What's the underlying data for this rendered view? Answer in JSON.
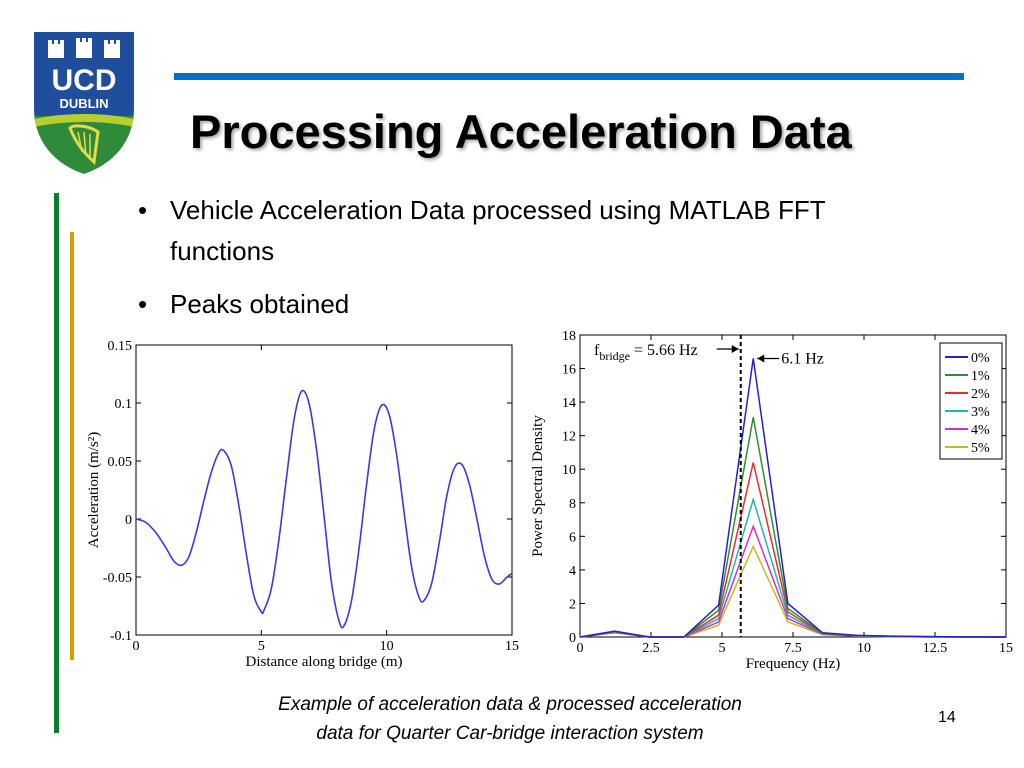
{
  "slide": {
    "title": "Processing Acceleration Data",
    "bullets": [
      {
        "text": "Vehicle Acceleration Data processed using MATLAB FFT functions"
      },
      {
        "text": "Peaks obtained"
      }
    ],
    "caption_line1": "Example of acceleration data & processed acceleration",
    "caption_line2": "data for Quarter Car-bridge interaction system",
    "page_number": "14"
  },
  "logo": {
    "text_top": "UCD",
    "text_bottom": "DUBLIN",
    "colors": {
      "shield_blue": "#1f4e9c",
      "shield_green": "#2e8b3a",
      "shield_yellow": "#b8cf2b"
    }
  },
  "colors": {
    "accent_bar": "#0072c6",
    "side_bar_green": "#0a7f2c",
    "side_bar_yellow": "#d4a100"
  },
  "chart_data": [
    {
      "type": "line",
      "title": "",
      "xlabel": "Distance along bridge (m)",
      "ylabel": "Acceleration (m/s²)",
      "xlim": [
        0,
        15
      ],
      "ylim": [
        -0.1,
        0.15
      ],
      "xticks": [
        "0",
        "5",
        "10",
        "15"
      ],
      "xtick_values": [
        0,
        5,
        10,
        15
      ],
      "yticks": [
        "-0.1",
        "-0.05",
        "0",
        "0.05",
        "0.1",
        "0.15"
      ],
      "ytick_values": [
        -0.1,
        -0.05,
        0,
        0.05,
        0.1,
        0.15
      ],
      "grid": false,
      "series": [
        {
          "color": "#3a3ae0",
          "x": [
            0,
            0.4,
            0.8,
            1.2,
            1.5,
            1.8,
            2.1,
            2.4,
            2.7,
            3.0,
            3.3,
            3.5,
            3.8,
            4.1,
            4.4,
            4.7,
            5.0,
            5.1,
            5.4,
            5.7,
            6.0,
            6.3,
            6.6,
            6.9,
            7.2,
            7.5,
            7.8,
            8.1,
            8.3,
            8.6,
            8.9,
            9.2,
            9.5,
            9.8,
            10.1,
            10.4,
            10.7,
            11.0,
            11.3,
            11.5,
            11.8,
            12.1,
            12.4,
            12.7,
            13.0,
            13.3,
            13.6,
            13.9,
            14.2,
            14.5,
            14.8,
            15.0
          ],
          "y": [
            0.0,
            -0.003,
            -0.012,
            -0.025,
            -0.036,
            -0.04,
            -0.033,
            -0.012,
            0.015,
            0.04,
            0.057,
            0.059,
            0.046,
            0.012,
            -0.03,
            -0.066,
            -0.08,
            -0.079,
            -0.06,
            -0.018,
            0.035,
            0.085,
            0.11,
            0.1,
            0.06,
            0.003,
            -0.055,
            -0.088,
            -0.092,
            -0.07,
            -0.025,
            0.03,
            0.077,
            0.098,
            0.09,
            0.055,
            0.005,
            -0.042,
            -0.068,
            -0.07,
            -0.055,
            -0.02,
            0.02,
            0.044,
            0.047,
            0.03,
            0.0,
            -0.032,
            -0.052,
            -0.056,
            -0.05,
            -0.047
          ]
        }
      ]
    },
    {
      "type": "line",
      "title": "",
      "xlabel": "Frequency (Hz)",
      "ylabel": "Power Spectral Density",
      "xlim": [
        0,
        15
      ],
      "ylim": [
        0,
        18
      ],
      "xticks": [
        "0",
        "2.5",
        "5",
        "7.5",
        "10",
        "12.5",
        "15"
      ],
      "xtick_values": [
        0,
        2.5,
        5,
        7.5,
        10,
        12.5,
        15
      ],
      "yticks": [
        "0",
        "2",
        "4",
        "6",
        "8",
        "10",
        "12",
        "14",
        "16",
        "18"
      ],
      "ytick_values": [
        0,
        2,
        4,
        6,
        8,
        10,
        12,
        14,
        16,
        18
      ],
      "grid": false,
      "legend_placement": "top-right",
      "x": [
        0,
        1.22,
        2.44,
        3.66,
        4.88,
        6.1,
        7.32,
        8.54,
        9.76,
        10.98,
        12.2,
        13.42,
        15.0
      ],
      "series": [
        {
          "name": "0%",
          "color": "#2222cc",
          "values": [
            0.0,
            0.35,
            0.0,
            0.0,
            1.9,
            16.6,
            2.0,
            0.25,
            0.1,
            0.05,
            0.02,
            0.01,
            0.0
          ]
        },
        {
          "name": "1%",
          "color": "#2f8f2f",
          "values": [
            0.0,
            0.33,
            0.0,
            0.0,
            1.6,
            13.1,
            1.7,
            0.22,
            0.09,
            0.04,
            0.02,
            0.01,
            0.0
          ]
        },
        {
          "name": "2%",
          "color": "#e03030",
          "values": [
            0.0,
            0.31,
            0.0,
            0.0,
            1.3,
            10.4,
            1.5,
            0.2,
            0.08,
            0.04,
            0.02,
            0.01,
            0.0
          ]
        },
        {
          "name": "3%",
          "color": "#22b5b5",
          "values": [
            0.0,
            0.29,
            0.0,
            0.0,
            1.1,
            8.2,
            1.3,
            0.18,
            0.07,
            0.03,
            0.01,
            0.0,
            0.0
          ]
        },
        {
          "name": "4%",
          "color": "#cc33cc",
          "values": [
            0.0,
            0.27,
            0.0,
            0.0,
            0.9,
            6.6,
            1.1,
            0.16,
            0.06,
            0.03,
            0.01,
            0.0,
            0.0
          ]
        },
        {
          "name": "5%",
          "color": "#c8b820",
          "values": [
            0.0,
            0.25,
            0.0,
            0.0,
            0.7,
            5.4,
            0.9,
            0.14,
            0.05,
            0.02,
            0.01,
            0.0,
            0.0
          ]
        }
      ],
      "annotations": [
        {
          "text_main": "f",
          "text_sub": "bridge",
          "text_rest": " = 5.66 Hz",
          "x": 5.66
        },
        {
          "text": "6.1 Hz",
          "x": 6.1
        }
      ]
    }
  ]
}
